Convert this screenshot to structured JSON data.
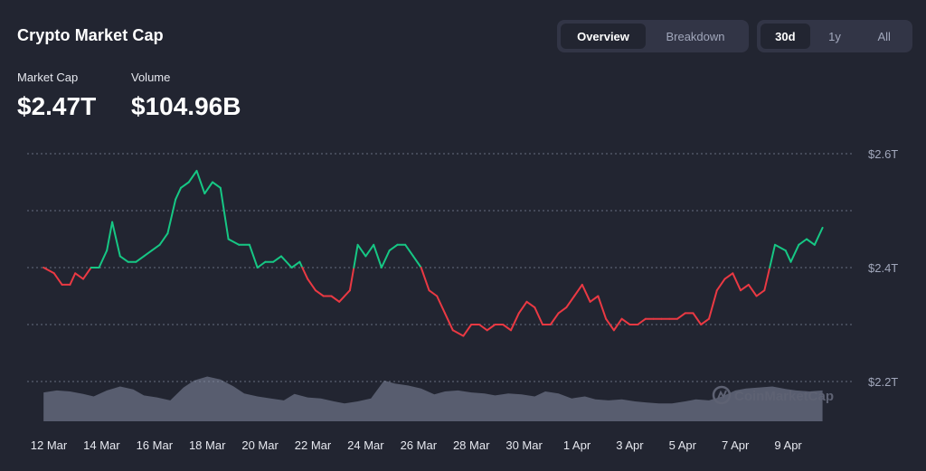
{
  "header": {
    "title": "Crypto Market Cap"
  },
  "view_tabs": [
    {
      "label": "Overview",
      "active": true
    },
    {
      "label": "Breakdown",
      "active": false
    }
  ],
  "range_tabs": [
    {
      "label": "30d",
      "active": true
    },
    {
      "label": "1y",
      "active": false
    },
    {
      "label": "All",
      "active": false
    }
  ],
  "stats": {
    "market_cap": {
      "label": "Market Cap",
      "value": "$2.47T"
    },
    "volume": {
      "label": "Volume",
      "value": "$104.96B"
    }
  },
  "watermark": "CoinMarketCap",
  "colors": {
    "up": "#16c784",
    "down": "#ea3943",
    "volume": "#858ca2",
    "grid": "#858ca2",
    "background": "#222531",
    "panel": "#323546"
  },
  "chart_data": {
    "type": "line",
    "ylim": [
      2.2,
      2.6
    ],
    "y_ticks": [
      2.2,
      2.4,
      2.6
    ],
    "y_tick_labels": [
      "$2.2T",
      "$2.4T",
      "$2.6T"
    ],
    "reference_value": 2.4,
    "x_tick_labels": [
      "12 Mar",
      "14 Mar",
      "16 Mar",
      "18 Mar",
      "20 Mar",
      "22 Mar",
      "24 Mar",
      "26 Mar",
      "28 Mar",
      "30 Mar",
      "1 Apr",
      "3 Apr",
      "5 Apr",
      "7 Apr",
      "9 Apr"
    ],
    "grid": true,
    "series": [
      {
        "x": [
          11.8,
          12.2,
          12.5,
          12.8,
          13.0,
          13.3,
          13.6,
          13.9,
          14.2,
          14.4,
          14.7,
          15.0,
          15.3,
          15.6,
          15.9,
          16.2,
          16.5,
          16.8,
          17.0,
          17.3,
          17.6,
          17.9,
          18.2,
          18.5,
          18.8,
          19.2,
          19.6,
          19.9,
          20.2,
          20.5,
          20.8,
          21.2,
          21.5,
          21.8,
          22.1,
          22.4,
          22.7,
          23.0,
          23.4,
          23.7,
          24.0,
          24.3,
          24.6,
          24.9,
          25.2,
          25.5,
          25.8,
          26.1,
          26.4,
          26.7,
          27.0,
          27.3,
          27.7,
          28.0,
          28.3,
          28.6,
          28.9,
          29.2,
          29.5,
          29.8,
          30.1,
          30.4,
          30.7,
          31.0,
          31.3,
          31.6,
          31.9,
          32.2,
          32.5,
          32.8,
          33.1,
          33.4,
          33.7,
          34.0,
          34.3,
          34.6,
          34.9,
          35.2,
          35.5,
          35.8,
          36.1,
          36.4,
          36.7,
          37.0,
          37.3,
          37.6,
          37.9,
          38.2,
          38.5,
          38.8,
          39.1,
          39.5,
          39.9,
          40.1,
          40.4,
          40.7,
          41.0,
          41.3
        ],
        "values": [
          2.4,
          2.39,
          2.37,
          2.37,
          2.39,
          2.38,
          2.4,
          2.4,
          2.43,
          2.48,
          2.42,
          2.41,
          2.41,
          2.42,
          2.43,
          2.44,
          2.46,
          2.52,
          2.54,
          2.55,
          2.57,
          2.53,
          2.55,
          2.54,
          2.45,
          2.44,
          2.44,
          2.4,
          2.41,
          2.41,
          2.42,
          2.4,
          2.41,
          2.38,
          2.36,
          2.35,
          2.35,
          2.34,
          2.36,
          2.44,
          2.42,
          2.44,
          2.4,
          2.43,
          2.44,
          2.44,
          2.42,
          2.4,
          2.36,
          2.35,
          2.32,
          2.29,
          2.28,
          2.3,
          2.3,
          2.29,
          2.3,
          2.3,
          2.29,
          2.32,
          2.34,
          2.33,
          2.3,
          2.3,
          2.32,
          2.33,
          2.35,
          2.37,
          2.34,
          2.35,
          2.31,
          2.29,
          2.31,
          2.3,
          2.3,
          2.31,
          2.31,
          2.31,
          2.31,
          2.31,
          2.32,
          2.32,
          2.3,
          2.31,
          2.36,
          2.38,
          2.39,
          2.36,
          2.37,
          2.35,
          2.36,
          2.44,
          2.43,
          2.41,
          2.44,
          2.45,
          2.44,
          2.47
        ]
      }
    ],
    "volume": {
      "x": [
        11.8,
        12.3,
        12.8,
        13.3,
        13.7,
        14.2,
        14.7,
        15.2,
        15.6,
        16.1,
        16.6,
        17.1,
        17.5,
        18.0,
        18.5,
        19.0,
        19.4,
        19.9,
        20.4,
        20.9,
        21.3,
        21.8,
        22.3,
        22.8,
        23.2,
        23.7,
        24.2,
        24.7,
        25.1,
        25.6,
        26.1,
        26.6,
        27.0,
        27.5,
        28.0,
        28.5,
        28.9,
        29.4,
        29.9,
        30.4,
        30.8,
        31.3,
        31.8,
        32.3,
        32.7,
        33.2,
        33.7,
        34.2,
        34.6,
        35.1,
        35.6,
        36.1,
        36.5,
        37.0,
        37.5,
        38.0,
        38.4,
        38.9,
        39.4,
        39.9,
        40.3,
        40.8,
        41.3
      ],
      "values": [
        58,
        62,
        60,
        55,
        50,
        62,
        70,
        64,
        52,
        48,
        42,
        68,
        82,
        90,
        84,
        70,
        56,
        50,
        46,
        42,
        55,
        48,
        46,
        40,
        36,
        40,
        46,
        82,
        76,
        72,
        66,
        54,
        60,
        62,
        58,
        56,
        52,
        56,
        54,
        50,
        60,
        56,
        46,
        50,
        44,
        42,
        44,
        40,
        38,
        36,
        36,
        40,
        44,
        42,
        50,
        62,
        66,
        68,
        70,
        65,
        62,
        60,
        62
      ]
    }
  }
}
